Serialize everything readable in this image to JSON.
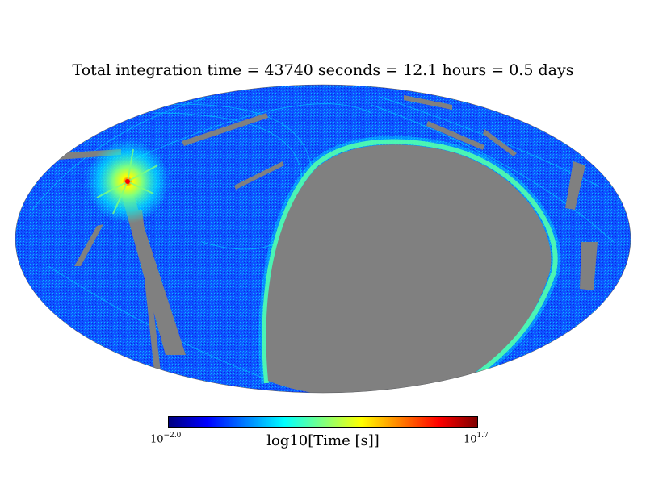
{
  "title": "Total integration time = 43740 seconds = 12.1 hours = 0.5 days",
  "projection": "mollweide",
  "colormap": "jet",
  "colors": {
    "masked": "#808080",
    "background": "#ffffff",
    "jet": [
      "#00007f",
      "#0000ff",
      "#007fff",
      "#00ffff",
      "#7fff7f",
      "#ffff00",
      "#ff7f00",
      "#ff0000",
      "#7f0000"
    ]
  },
  "colorbar": {
    "label": "log10[Time [s]]",
    "min_base": "10",
    "min_exp": "−2.0",
    "max_base": "10",
    "max_exp": "1.7",
    "min_value": -2.0,
    "max_value": 1.7
  }
}
